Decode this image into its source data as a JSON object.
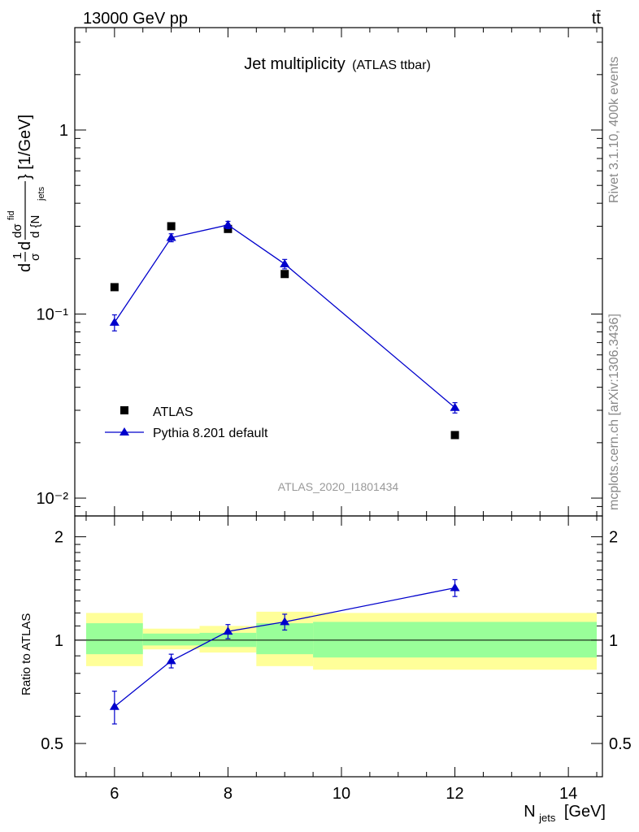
{
  "header": {
    "energy_label": "13000 GeV pp",
    "process_label": "tt̄",
    "side_label_top": "Rivet 3.1.10,  400k events",
    "side_label_bottom": "mcplots.cern.ch [arXiv:1306.3436]"
  },
  "chart_data": [
    {
      "type": "scatter",
      "panel": "main",
      "title": "Jet multiplicity",
      "subtitle": "(ATLAS ttbar)",
      "watermark": "ATLAS_2020_I1801434",
      "ylabel": "1/σ dσ/d{N_jets} [1/GeV]",
      "ylabel_parts": {
        "numerator": "dσ",
        "superscript": "fid",
        "prefix_frac_num": "1",
        "prefix_frac_den": "σ",
        "denominator": "d {N",
        "subscript": "jets",
        "suffix": "} [1/GeV]"
      },
      "y_scale": "log",
      "ylim": [
        0.008,
        3.6
      ],
      "xlim": [
        5.3,
        14.6
      ],
      "y_ticks": [
        "10⁻²",
        "10⁻¹",
        "1"
      ],
      "legend_position": "lower-left",
      "series": [
        {
          "name": "ATLAS",
          "marker": "square",
          "color": "#000000",
          "x": [
            6,
            7,
            8,
            9,
            12
          ],
          "y": [
            0.14,
            0.3,
            0.29,
            0.165,
            0.022
          ]
        },
        {
          "name": "Pythia 8.201 default",
          "marker": "triangle",
          "color": "#0000cc",
          "line": true,
          "x": [
            6,
            7,
            8,
            9,
            12
          ],
          "y": [
            0.09,
            0.26,
            0.305,
            0.187,
            0.031
          ],
          "yerr": [
            0.009,
            0.013,
            0.014,
            0.011,
            0.002
          ]
        }
      ]
    },
    {
      "type": "line",
      "panel": "ratio",
      "ylabel": "Ratio to ATLAS",
      "xlabel": "N_jets [GeV]",
      "xlabel_parts": {
        "main": "N",
        "subscript": "jets",
        "suffix": "[GeV]"
      },
      "ylim": [
        0.4,
        2.3
      ],
      "y_ticks": [
        "0.5",
        "1",
        "2"
      ],
      "x_ticks": [
        "6",
        "8",
        "10",
        "12",
        "14"
      ],
      "reference_line": 1,
      "uncertainty_bands": [
        {
          "x_range": [
            5.5,
            6.5
          ],
          "inner": [
            0.91,
            1.12
          ],
          "outer": [
            0.84,
            1.2
          ]
        },
        {
          "x_range": [
            6.5,
            7.5
          ],
          "inner": [
            0.965,
            1.045
          ],
          "outer": [
            0.94,
            1.08
          ]
        },
        {
          "x_range": [
            7.5,
            8.5
          ],
          "inner": [
            0.955,
            1.05
          ],
          "outer": [
            0.92,
            1.1
          ]
        },
        {
          "x_range": [
            8.5,
            9.5
          ],
          "inner": [
            0.91,
            1.12
          ],
          "outer": [
            0.84,
            1.21
          ]
        },
        {
          "x_range": [
            9.5,
            14.5
          ],
          "inner": [
            0.89,
            1.13
          ],
          "outer": [
            0.82,
            1.2
          ]
        }
      ],
      "series": [
        {
          "name": "Pythia 8.201 default",
          "marker": "triangle",
          "color": "#0000cc",
          "x": [
            6,
            7,
            8,
            9,
            12
          ],
          "y": [
            0.64,
            0.87,
            1.06,
            1.13,
            1.42
          ],
          "yerr": [
            0.07,
            0.04,
            0.05,
            0.06,
            0.08
          ]
        }
      ]
    }
  ],
  "colors": {
    "band_inner": "#99ff99",
    "band_outer": "#ffff99",
    "data": "#000000",
    "mc": "#0000cc",
    "side_text": "#888888",
    "watermark": "#999999"
  }
}
